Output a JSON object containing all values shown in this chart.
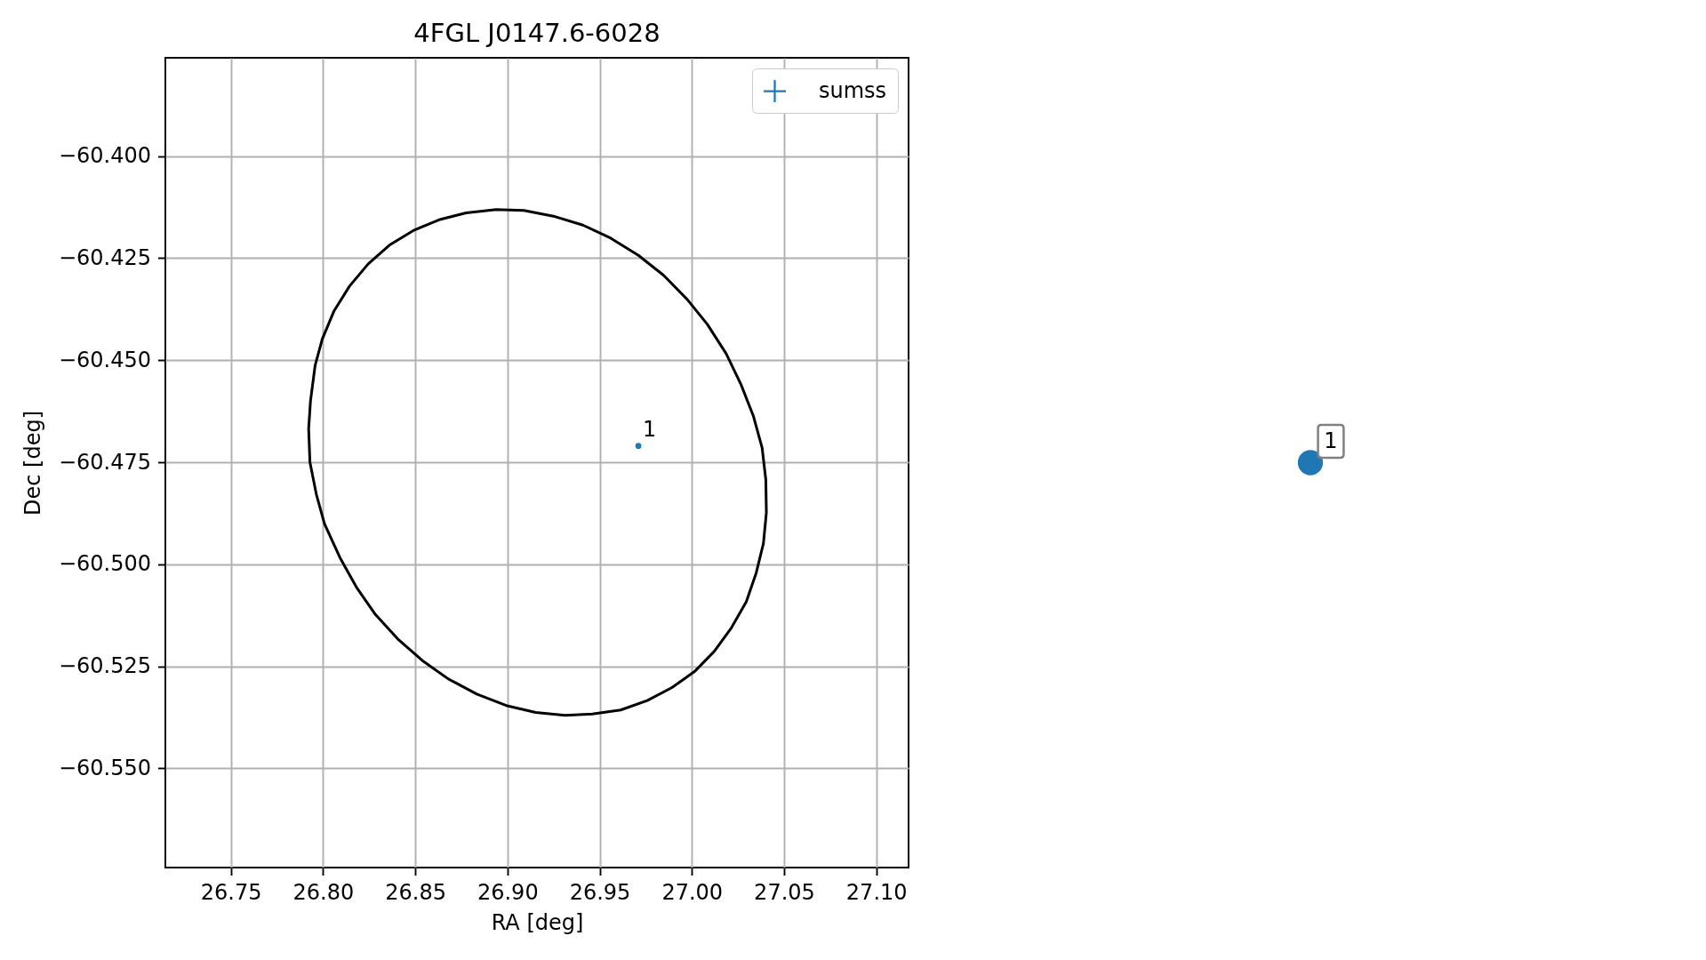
{
  "chart_data": {
    "type": "scatter",
    "title": "4FGL J0147.6-6028",
    "xlabel": "RA [deg]",
    "ylabel": "Dec [deg]",
    "xlim": [
      26.7145,
      27.1175
    ],
    "ylim": [
      -60.5743,
      -60.3759
    ],
    "xticks": [
      26.75,
      {
        "value": 26.8,
        "label": "26.80"
      },
      26.85,
      {
        "value": 26.9,
        "label": "26.90"
      },
      26.95,
      {
        "value": 27.0,
        "label": "27.00"
      },
      27.05,
      {
        "value": 27.1,
        "label": "27.10"
      }
    ],
    "yticks": [
      {
        "value": -60.4,
        "label": "−60.400"
      },
      {
        "value": -60.425,
        "label": "−60.425"
      },
      {
        "value": -60.45,
        "label": "−60.450"
      },
      {
        "value": -60.475,
        "label": "−60.475"
      },
      {
        "value": -60.5,
        "label": "−60.500"
      },
      {
        "value": -60.525,
        "label": "−60.525"
      },
      {
        "value": -60.55,
        "label": "−60.550"
      }
    ],
    "grid": true,
    "legend": "top right",
    "marker": "circle",
    "series": [
      {
        "name": "sumss",
        "color": "#1f77b4",
        "x": [
          26.971
        ],
        "values": [
          -60.471
        ]
      }
    ],
    "annotations": [
      {
        "text": "1",
        "x": 26.971,
        "y": -60.471
      },
      "1"
    ]
  }
}
